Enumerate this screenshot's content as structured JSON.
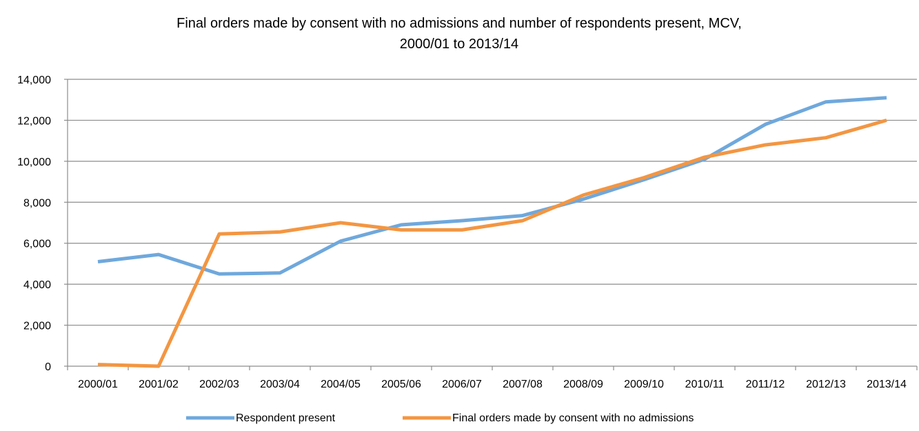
{
  "chart_data": {
    "type": "line",
    "title": [
      "Final orders made by consent with no admissions and number of respondents present, MCV,",
      "2000/01 to 2013/14"
    ],
    "xlabel": "",
    "ylabel": "",
    "categories": [
      "2000/01",
      "2001/02",
      "2002/03",
      "2003/04",
      "2004/05",
      "2005/06",
      "2006/07",
      "2007/08",
      "2008/09",
      "2009/10",
      "2010/11",
      "2011/12",
      "2012/13",
      "2013/14"
    ],
    "ylim": [
      0,
      14000
    ],
    "yticks": [
      0,
      2000,
      4000,
      6000,
      8000,
      10000,
      12000,
      14000
    ],
    "ytick_labels": [
      "0",
      "2,000",
      "4,000",
      "6,000",
      "8,000",
      "10,000",
      "12,000",
      "14,000"
    ],
    "grid": true,
    "legend_position": "bottom",
    "series": [
      {
        "name": "Respondent present",
        "color": "#6fa8dc",
        "values": [
          5100,
          5450,
          4500,
          4550,
          6100,
          6900,
          7100,
          7350,
          8150,
          9100,
          10100,
          11800,
          12900,
          13100
        ]
      },
      {
        "name": "Final orders made by consent with no admissions",
        "color": "#f39642",
        "values": [
          80,
          0,
          6450,
          6550,
          7000,
          6650,
          6650,
          7100,
          8350,
          9200,
          10200,
          10800,
          11150,
          12000
        ]
      }
    ]
  }
}
